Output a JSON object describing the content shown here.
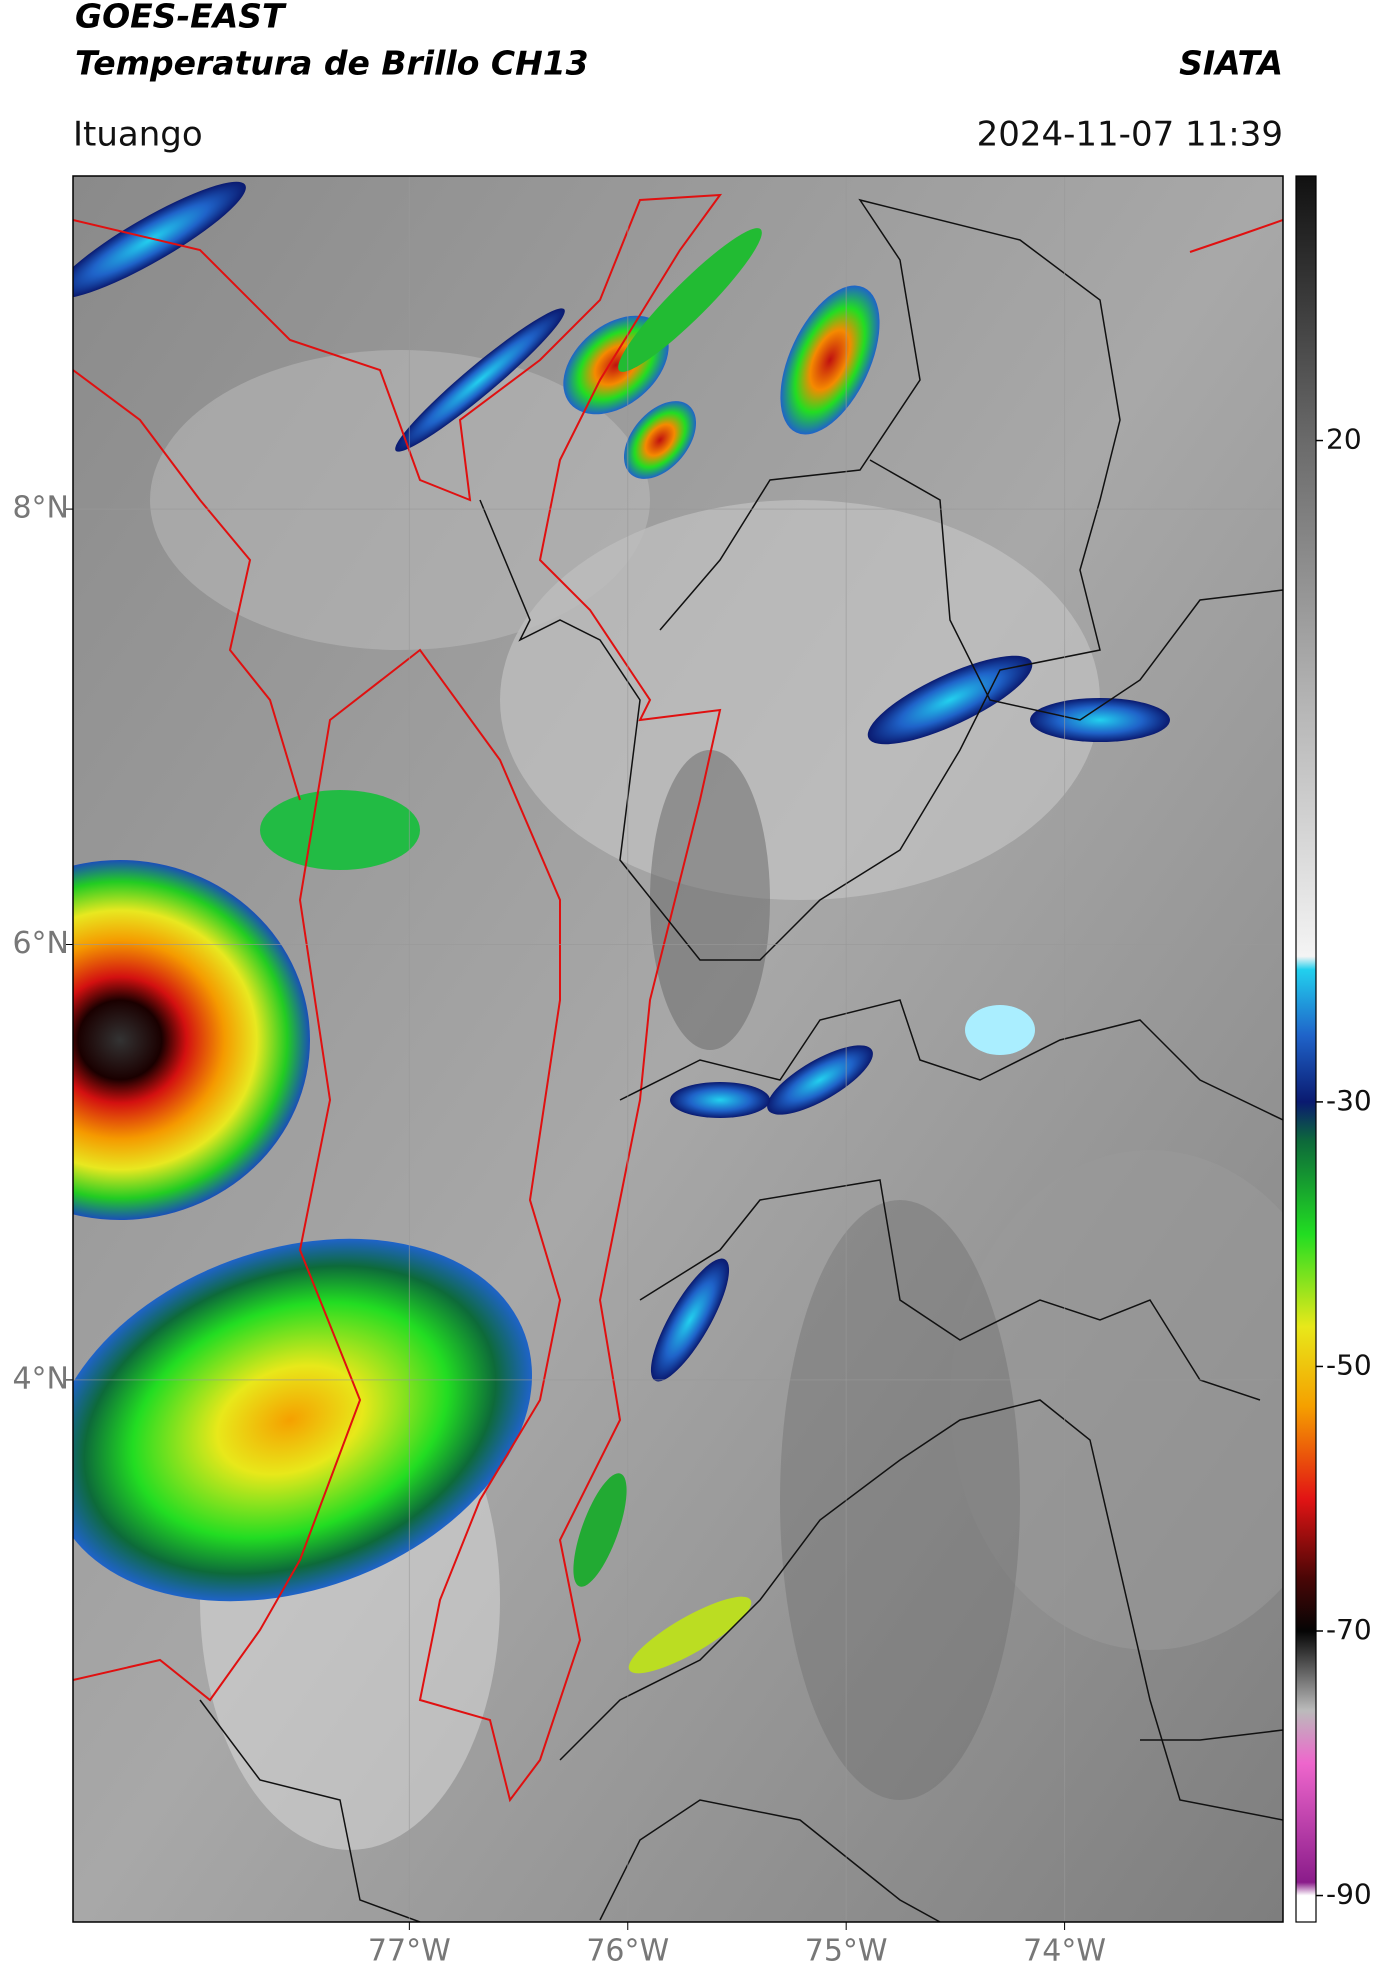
{
  "header": {
    "title": "GOES-EAST",
    "subtitle": "Temperatura de Brillo CH13",
    "source": "SIATA",
    "region": "Ituango",
    "datetime": "2024-11-07 11:39"
  },
  "map": {
    "lon_range": [
      -78.54,
      -73.0
    ],
    "lat_range": [
      1.51,
      9.53
    ],
    "grid": true,
    "lat_ticks": [
      {
        "value": 8,
        "label": "8°N"
      },
      {
        "value": 6,
        "label": "6°N"
      },
      {
        "value": 4,
        "label": "4°N"
      }
    ],
    "lon_ticks": [
      {
        "value": -77,
        "label": "77°W"
      },
      {
        "value": -76,
        "label": "76°W"
      },
      {
        "value": -75,
        "label": "75°W"
      },
      {
        "value": -74,
        "label": "74°W"
      }
    ]
  },
  "colorbar": {
    "range": [
      -92,
      40
    ],
    "ticks": [
      20,
      -30,
      -50,
      -70,
      -90
    ],
    "colors": [
      {
        "value": 40,
        "color": "#111111"
      },
      {
        "value": 20,
        "color": "#6a6a6a"
      },
      {
        "value": 0,
        "color": "#b5b5b5"
      },
      {
        "value": -19,
        "color": "#f4f4f4"
      },
      {
        "value": -20,
        "color": "#22d0ee"
      },
      {
        "value": -25,
        "color": "#1f63c9"
      },
      {
        "value": -30,
        "color": "#0a1a70"
      },
      {
        "value": -33,
        "color": "#0d6a3a"
      },
      {
        "value": -40,
        "color": "#22dd22"
      },
      {
        "value": -47,
        "color": "#e8e81a"
      },
      {
        "value": -53,
        "color": "#f5a000"
      },
      {
        "value": -60,
        "color": "#e21414"
      },
      {
        "value": -66,
        "color": "#4a0606"
      },
      {
        "value": -70,
        "color": "#050505"
      },
      {
        "value": -76,
        "color": "#bbbbbb"
      },
      {
        "value": -80,
        "color": "#ee66cc"
      },
      {
        "value": -89,
        "color": "#8a1c8a"
      },
      {
        "value": -90,
        "color": "#ffffff"
      },
      {
        "value": -92,
        "color": "#ffffff"
      }
    ]
  }
}
